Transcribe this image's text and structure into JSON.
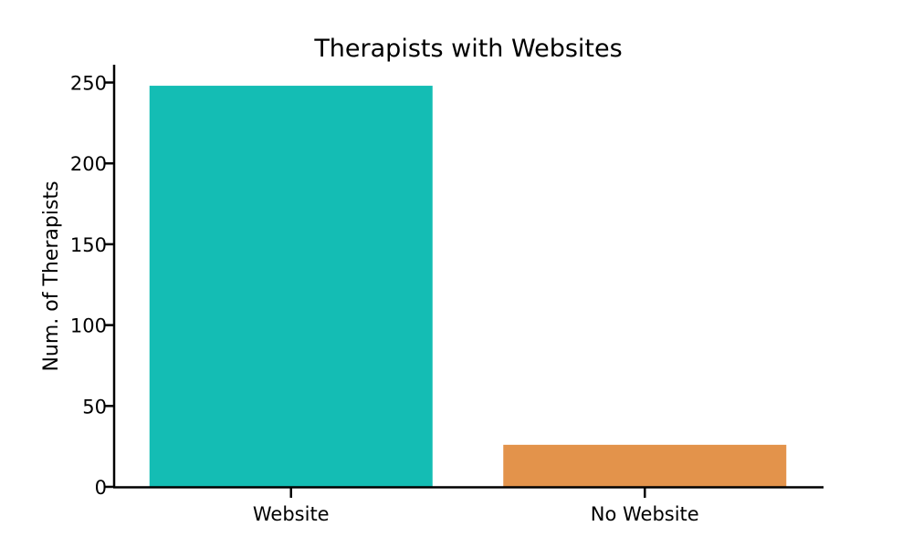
{
  "chart_data": {
    "type": "bar",
    "title": "Therapists with Websites",
    "xlabel": "",
    "ylabel": "Num. of Therapists",
    "categories": [
      "Website",
      "No Website"
    ],
    "values": [
      248,
      26
    ],
    "colors": [
      "#14bdb4",
      "#e3934b"
    ],
    "ylim": [
      0,
      261
    ],
    "yticks": [
      0,
      50,
      100,
      150,
      200,
      250
    ],
    "ytick_labels": [
      "0",
      "50",
      "100",
      "150",
      "200",
      "250"
    ],
    "grid": false,
    "legend": "none"
  }
}
